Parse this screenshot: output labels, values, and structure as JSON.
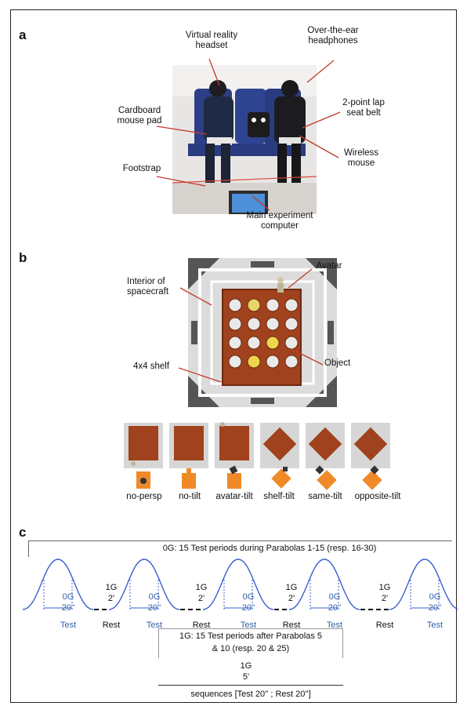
{
  "panel_a": {
    "letter": "a",
    "labels": {
      "vr_headset": "Virtual reality\nheadset",
      "headphones": "Over-the-ear\nheadphones",
      "mouse_pad": "Cardboard\nmouse pad",
      "seat_belt": "2-point lap\nseat belt",
      "wireless_mouse": "Wireless\nmouse",
      "footstrap": "Footstrap",
      "computer": "Main experiment\ncomputer"
    }
  },
  "panel_b": {
    "letter": "b",
    "labels": {
      "avatar": "Avatar",
      "interior": "Interior of\nspacecraft",
      "shelf": "4x4 shelf",
      "object": "Object"
    },
    "conditions": [
      "no-persp",
      "no-tilt",
      "avatar-tilt",
      "shelf-tilt",
      "same-tilt",
      "opposite-tilt"
    ]
  },
  "panel_c": {
    "letter": "c",
    "header_0g": "0G: 15 Test periods during Parabolas 1-15 (resp. 16-30)",
    "bump_label_top": "0G",
    "bump_label_bottom": "20''",
    "test_label": "Test",
    "rest_top": "1G",
    "rest_bottom": "2'",
    "rest_label": "Rest",
    "box_1g_line1": "1G: 15 Test periods after Parabolas 5",
    "box_1g_line2": "& 10 (resp. 20 & 25)",
    "one_g_top": "1G",
    "one_g_bottom": "5'",
    "sequences": "sequences [Test 20'' ; Rest 20'']"
  },
  "colors": {
    "bump_stroke": "#3b5fd0",
    "blue_text": "#2f5fa8",
    "shelf_brown": "#a0421e",
    "orange": "#f08a28"
  }
}
